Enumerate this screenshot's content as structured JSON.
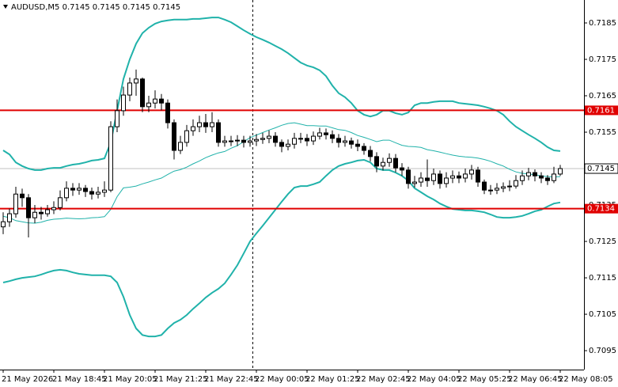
{
  "chart_data": {
    "type": "candlestick",
    "title": "AUDUSD,M5  0.7145 0.7145 0.7145 0.7145",
    "categories": [
      "21 May 2026",
      null,
      null,
      null,
      null,
      null,
      null,
      null,
      "21 May 18:45",
      null,
      null,
      null,
      null,
      null,
      null,
      null,
      "21 May 20:05",
      null,
      null,
      null,
      null,
      null,
      null,
      null,
      "21 May 21:25",
      null,
      null,
      null,
      null,
      null,
      null,
      null,
      "21 May 22:45",
      null,
      null,
      null,
      null,
      null,
      null,
      null,
      "22 May 00:05",
      null,
      null,
      null,
      null,
      null,
      null,
      null,
      "22 May 01:25",
      null,
      null,
      null,
      null,
      null,
      null,
      null,
      "22 May 02:45",
      null,
      null,
      null,
      null,
      null,
      null,
      null,
      "22 May 04:05",
      null,
      null,
      null,
      null,
      null,
      null,
      null,
      "22 May 05:25",
      null,
      null,
      null,
      null,
      null,
      null,
      null,
      "22 May 06:45",
      null,
      null,
      null,
      null,
      null,
      null,
      null,
      "22 May 08:05"
    ],
    "open": [
      0.7129,
      0.71304,
      0.71326,
      0.7138,
      0.7137,
      0.71315,
      0.7133,
      0.71326,
      0.71337,
      0.71343,
      0.7137,
      0.71396,
      0.71391,
      0.71396,
      0.71387,
      0.7138,
      0.71385,
      0.71391,
      0.71565,
      0.71609,
      0.71652,
      0.71685,
      0.71696,
      0.7162,
      0.7163,
      0.71641,
      0.7163,
      0.71576,
      0.715,
      0.71522,
      0.71554,
      0.71565,
      0.71576,
      0.71565,
      0.71576,
      0.71522,
      0.71526,
      0.71526,
      0.71528,
      0.71522,
      0.71526,
      0.7153,
      0.71533,
      0.71539,
      0.71522,
      0.71511,
      0.71517,
      0.71533,
      0.71533,
      0.71526,
      0.71539,
      0.71548,
      0.71543,
      0.71533,
      0.71522,
      0.71526,
      0.71517,
      0.71511,
      0.715,
      0.71483,
      0.71457,
      0.71467,
      0.71478,
      0.71452,
      0.71446,
      0.71409,
      0.71413,
      0.71424,
      0.71417,
      0.71435,
      0.71409,
      0.71424,
      0.7143,
      0.71424,
      0.71435,
      0.71446,
      0.71413,
      0.71391,
      0.71391,
      0.71396,
      0.714,
      0.71402,
      0.71417,
      0.7143,
      0.71439,
      0.7143,
      0.71424,
      0.71417,
      0.71435
    ],
    "high": [
      0.7133,
      0.7134,
      0.714,
      0.71395,
      0.7138,
      0.7135,
      0.71345,
      0.7135,
      0.7136,
      0.7139,
      0.71415,
      0.7141,
      0.7141,
      0.71405,
      0.71398,
      0.714,
      0.71415,
      0.7158,
      0.7164,
      0.71675,
      0.717,
      0.71722,
      0.717,
      0.7165,
      0.71665,
      0.71655,
      0.7164,
      0.71585,
      0.7154,
      0.7157,
      0.71585,
      0.71595,
      0.716,
      0.71605,
      0.71585,
      0.7154,
      0.7154,
      0.71542,
      0.7154,
      0.7154,
      0.71545,
      0.71548,
      0.71555,
      0.7155,
      0.7153,
      0.7153,
      0.71548,
      0.71548,
      0.71545,
      0.71552,
      0.71562,
      0.7156,
      0.71555,
      0.71545,
      0.7154,
      0.71535,
      0.7153,
      0.7152,
      0.71512,
      0.71495,
      0.7148,
      0.71492,
      0.7149,
      0.71465,
      0.71455,
      0.7143,
      0.7144,
      0.71475,
      0.7145,
      0.71445,
      0.7144,
      0.71445,
      0.71442,
      0.7145,
      0.7146,
      0.71455,
      0.7142,
      0.71405,
      0.7141,
      0.71412,
      0.71418,
      0.71432,
      0.71445,
      0.71452,
      0.71448,
      0.7144,
      0.71432,
      0.71455,
      0.7146
    ],
    "low": [
      0.7127,
      0.7129,
      0.71315,
      0.71345,
      0.71261,
      0.713,
      0.7131,
      0.71318,
      0.71325,
      0.71335,
      0.7136,
      0.71375,
      0.71378,
      0.71372,
      0.71365,
      0.71368,
      0.71372,
      0.71385,
      0.7155,
      0.71595,
      0.71635,
      0.7165,
      0.71605,
      0.71605,
      0.71615,
      0.7161,
      0.7156,
      0.71475,
      0.7149,
      0.7151,
      0.7154,
      0.7155,
      0.71548,
      0.7155,
      0.7151,
      0.7151,
      0.71512,
      0.71512,
      0.71508,
      0.7151,
      0.71512,
      0.71518,
      0.7152,
      0.7151,
      0.71495,
      0.715,
      0.71505,
      0.7152,
      0.71512,
      0.71515,
      0.7153,
      0.7153,
      0.7152,
      0.71508,
      0.7151,
      0.71505,
      0.71498,
      0.71488,
      0.7147,
      0.7144,
      0.71445,
      0.71455,
      0.7144,
      0.7143,
      0.71395,
      0.71398,
      0.714,
      0.714,
      0.71405,
      0.71395,
      0.71398,
      0.7141,
      0.7141,
      0.71412,
      0.7142,
      0.714,
      0.7138,
      0.71378,
      0.7138,
      0.71385,
      0.71388,
      0.71395,
      0.71405,
      0.71418,
      0.71415,
      0.7141,
      0.71405,
      0.7141,
      0.7143
    ],
    "close": [
      0.71304,
      0.71326,
      0.7138,
      0.7137,
      0.71315,
      0.7133,
      0.71326,
      0.71337,
      0.71343,
      0.7137,
      0.71396,
      0.71391,
      0.71396,
      0.71387,
      0.7138,
      0.71385,
      0.71391,
      0.71565,
      0.71609,
      0.71652,
      0.71685,
      0.71696,
      0.7162,
      0.7163,
      0.71641,
      0.7163,
      0.71576,
      0.715,
      0.71522,
      0.71554,
      0.71565,
      0.71576,
      0.71565,
      0.71576,
      0.71522,
      0.71526,
      0.71526,
      0.71528,
      0.71522,
      0.71526,
      0.7153,
      0.71533,
      0.71539,
      0.71522,
      0.71511,
      0.71517,
      0.71533,
      0.71533,
      0.71526,
      0.71539,
      0.71548,
      0.71543,
      0.71533,
      0.71522,
      0.71526,
      0.71517,
      0.71511,
      0.715,
      0.71483,
      0.71457,
      0.71467,
      0.71478,
      0.71452,
      0.71446,
      0.71409,
      0.71413,
      0.71424,
      0.71417,
      0.71435,
      0.71409,
      0.71424,
      0.7143,
      0.71424,
      0.71435,
      0.71446,
      0.71413,
      0.71391,
      0.71391,
      0.71396,
      0.714,
      0.71402,
      0.71417,
      0.7143,
      0.71439,
      0.7143,
      0.71424,
      0.71417,
      0.71435,
      0.7145
    ],
    "series": [
      {
        "color": "#20b2aa",
        "values": [
          0.715,
          0.71489,
          0.71467,
          0.71457,
          0.7145,
          0.71446,
          0.71446,
          0.7145,
          0.71452,
          0.71452,
          0.71457,
          0.71461,
          0.71463,
          0.71467,
          0.71472,
          0.71474,
          0.71478,
          0.71522,
          0.71609,
          0.71696,
          0.7175,
          0.71793,
          0.71822,
          0.71837,
          0.71848,
          0.71854,
          0.71857,
          0.71859,
          0.71859,
          0.71859,
          0.71861,
          0.71861,
          0.71863,
          0.71865,
          0.71865,
          0.71859,
          0.71852,
          0.71841,
          0.7183,
          0.7182,
          0.71811,
          0.71804,
          0.71796,
          0.71787,
          0.71778,
          0.71767,
          0.71754,
          0.71741,
          0.71733,
          0.71728,
          0.7172,
          0.71704,
          0.71678,
          0.71657,
          0.71646,
          0.7163,
          0.71609,
          0.71598,
          0.71593,
          0.71598,
          0.71609,
          0.71609,
          0.71602,
          0.71598,
          0.71604,
          0.71624,
          0.7163,
          0.7163,
          0.71633,
          0.71635,
          0.71635,
          0.71635,
          0.7163,
          0.71628,
          0.71626,
          0.71624,
          0.7162,
          0.71615,
          0.71609,
          0.71598,
          0.7158,
          0.71565,
          0.71554,
          0.71543,
          0.71533,
          0.71522,
          0.71509,
          0.715,
          0.71498
        ]
      },
      {
        "color": "#20b2aa",
        "values": [
          0.71319,
          0.71315,
          0.71307,
          0.71304,
          0.71301,
          0.713,
          0.71303,
          0.71308,
          0.71311,
          0.71312,
          0.71314,
          0.71313,
          0.71312,
          0.71313,
          0.71315,
          0.71316,
          0.71318,
          0.71338,
          0.71373,
          0.71397,
          0.71399,
          0.71402,
          0.71408,
          0.71413,
          0.71419,
          0.71424,
          0.71434,
          0.71443,
          0.71447,
          0.71454,
          0.71463,
          0.71471,
          0.7148,
          0.71487,
          0.71493,
          0.71497,
          0.71506,
          0.71513,
          0.71524,
          0.71535,
          0.71542,
          0.71549,
          0.71556,
          0.71562,
          0.71569,
          0.71574,
          0.71576,
          0.71572,
          0.71568,
          0.71568,
          0.71567,
          0.71567,
          0.71562,
          0.71557,
          0.71555,
          0.71549,
          0.71541,
          0.71536,
          0.7153,
          0.71524,
          0.71528,
          0.71528,
          0.71521,
          0.71514,
          0.71511,
          0.7151,
          0.71508,
          0.71502,
          0.71499,
          0.71495,
          0.71491,
          0.71487,
          0.71484,
          0.71482,
          0.71481,
          0.71479,
          0.71475,
          0.7147,
          0.71463,
          0.71457,
          0.71448,
          0.71441,
          0.71437,
          0.71435,
          0.71433,
          0.7143,
          0.71428,
          0.71427,
          0.71428
        ]
      },
      {
        "color": "#20b2aa",
        "values": [
          0.71137,
          0.71141,
          0.71146,
          0.7115,
          0.71152,
          0.71154,
          0.71159,
          0.71165,
          0.7117,
          0.71172,
          0.7117,
          0.71165,
          0.71161,
          0.71159,
          0.71157,
          0.71157,
          0.71157,
          0.71154,
          0.71137,
          0.71098,
          0.71048,
          0.71011,
          0.70993,
          0.70989,
          0.70989,
          0.70993,
          0.71011,
          0.71026,
          0.71035,
          0.71048,
          0.71065,
          0.7108,
          0.71096,
          0.71109,
          0.7112,
          0.71135,
          0.71159,
          0.71185,
          0.71217,
          0.7125,
          0.71272,
          0.71293,
          0.71315,
          0.71337,
          0.71359,
          0.7138,
          0.71398,
          0.71402,
          0.71402,
          0.71407,
          0.71413,
          0.7143,
          0.71446,
          0.71457,
          0.71463,
          0.71467,
          0.71472,
          0.71474,
          0.71467,
          0.7145,
          0.71446,
          0.71446,
          0.71439,
          0.7143,
          0.71417,
          0.71396,
          0.71385,
          0.71374,
          0.71365,
          0.71354,
          0.71346,
          0.71339,
          0.71337,
          0.71335,
          0.71335,
          0.71333,
          0.7133,
          0.71324,
          0.71317,
          0.71315,
          0.71315,
          0.71317,
          0.7132,
          0.71326,
          0.71333,
          0.71337,
          0.71346,
          0.71354,
          0.71357
        ]
      }
    ],
    "hlines": [
      {
        "value": 0.7161,
        "color": "#e00000"
      },
      {
        "value": 0.7134,
        "color": "#e00000"
      }
    ],
    "current_price": 0.7145,
    "ylim": [
      0.70898,
      0.71913
    ],
    "yticks": [
      0.7095,
      0.7105,
      0.7115,
      0.7125,
      0.7135,
      0.7145,
      0.7155,
      0.7165,
      0.7175,
      0.7185
    ],
    "grid": false
  }
}
